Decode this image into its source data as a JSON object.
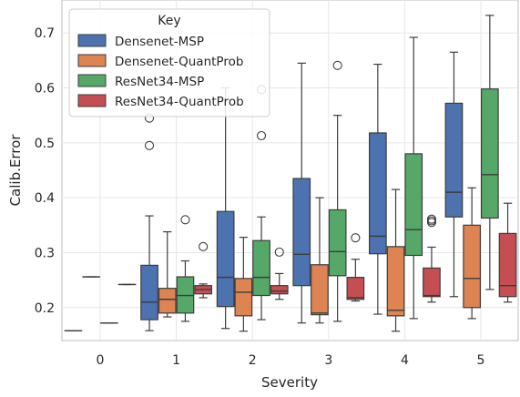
{
  "chart_data": {
    "type": "box",
    "title": "",
    "xlabel": "Severity",
    "ylabel": "Calib.Error",
    "categories": [
      "0",
      "1",
      "2",
      "3",
      "4",
      "5"
    ],
    "ylim": [
      0.14,
      0.76
    ],
    "yticks": [
      0.2,
      0.3,
      0.4,
      0.5,
      0.6,
      0.7
    ],
    "ytick_labels": [
      "0.2",
      "0.3",
      "0.4",
      "0.5",
      "0.6",
      "0.7"
    ],
    "grid": true,
    "legend": {
      "title": "Key",
      "placement": "top-left"
    },
    "series": [
      {
        "name": "Densenet-MSP",
        "color": "#4c72b0",
        "boxes": [
          {
            "category": "0",
            "whislo": 0.158,
            "q1": 0.158,
            "med": 0.158,
            "q3": 0.158,
            "whishi": 0.158,
            "fliers": []
          },
          {
            "category": "1",
            "whislo": 0.158,
            "q1": 0.178,
            "med": 0.21,
            "q3": 0.277,
            "whishi": 0.367,
            "fliers": [
              0.495,
              0.545
            ]
          },
          {
            "category": "2",
            "whislo": 0.162,
            "q1": 0.202,
            "med": 0.255,
            "q3": 0.375,
            "whishi": 0.6,
            "fliers": []
          },
          {
            "category": "3",
            "whislo": 0.172,
            "q1": 0.24,
            "med": 0.297,
            "q3": 0.435,
            "whishi": 0.645,
            "fliers": []
          },
          {
            "category": "4",
            "whislo": 0.188,
            "q1": 0.298,
            "med": 0.33,
            "q3": 0.518,
            "whishi": 0.643,
            "fliers": []
          },
          {
            "category": "5",
            "whislo": 0.22,
            "q1": 0.365,
            "med": 0.41,
            "q3": 0.572,
            "whishi": 0.665,
            "fliers": []
          }
        ]
      },
      {
        "name": "Densenet-QuantProb",
        "color": "#dd8452",
        "boxes": [
          {
            "category": "0",
            "whislo": 0.256,
            "q1": 0.256,
            "med": 0.256,
            "q3": 0.256,
            "whishi": 0.256,
            "fliers": []
          },
          {
            "category": "1",
            "whislo": 0.183,
            "q1": 0.19,
            "med": 0.215,
            "q3": 0.235,
            "whishi": 0.338,
            "fliers": []
          },
          {
            "category": "2",
            "whislo": 0.157,
            "q1": 0.185,
            "med": 0.228,
            "q3": 0.253,
            "whishi": 0.328,
            "fliers": []
          },
          {
            "category": "3",
            "whislo": 0.172,
            "q1": 0.187,
            "med": 0.19,
            "q3": 0.278,
            "whishi": 0.4,
            "fliers": []
          },
          {
            "category": "4",
            "whislo": 0.157,
            "q1": 0.185,
            "med": 0.195,
            "q3": 0.311,
            "whishi": 0.415,
            "fliers": []
          },
          {
            "category": "5",
            "whislo": 0.18,
            "q1": 0.2,
            "med": 0.253,
            "q3": 0.35,
            "whishi": 0.418,
            "fliers": []
          }
        ]
      },
      {
        "name": "ResNet34-MSP",
        "color": "#55a868",
        "boxes": [
          {
            "category": "0",
            "whislo": 0.172,
            "q1": 0.172,
            "med": 0.172,
            "q3": 0.172,
            "whishi": 0.172,
            "fliers": []
          },
          {
            "category": "1",
            "whislo": 0.175,
            "q1": 0.19,
            "med": 0.222,
            "q3": 0.256,
            "whishi": 0.285,
            "fliers": [
              0.36
            ]
          },
          {
            "category": "2",
            "whislo": 0.178,
            "q1": 0.222,
            "med": 0.255,
            "q3": 0.322,
            "whishi": 0.365,
            "fliers": [
              0.513,
              0.597
            ]
          },
          {
            "category": "3",
            "whislo": 0.175,
            "q1": 0.258,
            "med": 0.302,
            "q3": 0.378,
            "whishi": 0.55,
            "fliers": [
              0.641
            ]
          },
          {
            "category": "4",
            "whislo": 0.18,
            "q1": 0.295,
            "med": 0.342,
            "q3": 0.48,
            "whishi": 0.692,
            "fliers": []
          },
          {
            "category": "5",
            "whislo": 0.233,
            "q1": 0.363,
            "med": 0.442,
            "q3": 0.598,
            "whishi": 0.732,
            "fliers": []
          }
        ]
      },
      {
        "name": "ResNet34-QuantProb",
        "color": "#c44e52",
        "boxes": [
          {
            "category": "0",
            "whislo": 0.242,
            "q1": 0.242,
            "med": 0.242,
            "q3": 0.242,
            "whishi": 0.242,
            "fliers": []
          },
          {
            "category": "1",
            "whislo": 0.218,
            "q1": 0.225,
            "med": 0.233,
            "q3": 0.24,
            "whishi": 0.243,
            "fliers": [
              0.311
            ]
          },
          {
            "category": "2",
            "whislo": 0.215,
            "q1": 0.225,
            "med": 0.23,
            "q3": 0.24,
            "whishi": 0.262,
            "fliers": [
              0.301
            ]
          },
          {
            "category": "3",
            "whislo": 0.212,
            "q1": 0.215,
            "med": 0.218,
            "q3": 0.255,
            "whishi": 0.288,
            "fliers": [
              0.327
            ]
          },
          {
            "category": "4",
            "whislo": 0.21,
            "q1": 0.22,
            "med": 0.222,
            "q3": 0.272,
            "whishi": 0.31,
            "fliers": [
              0.355,
              0.358,
              0.361
            ]
          },
          {
            "category": "5",
            "whislo": 0.21,
            "q1": 0.22,
            "med": 0.24,
            "q3": 0.335,
            "whishi": 0.39,
            "fliers": []
          }
        ]
      }
    ]
  }
}
